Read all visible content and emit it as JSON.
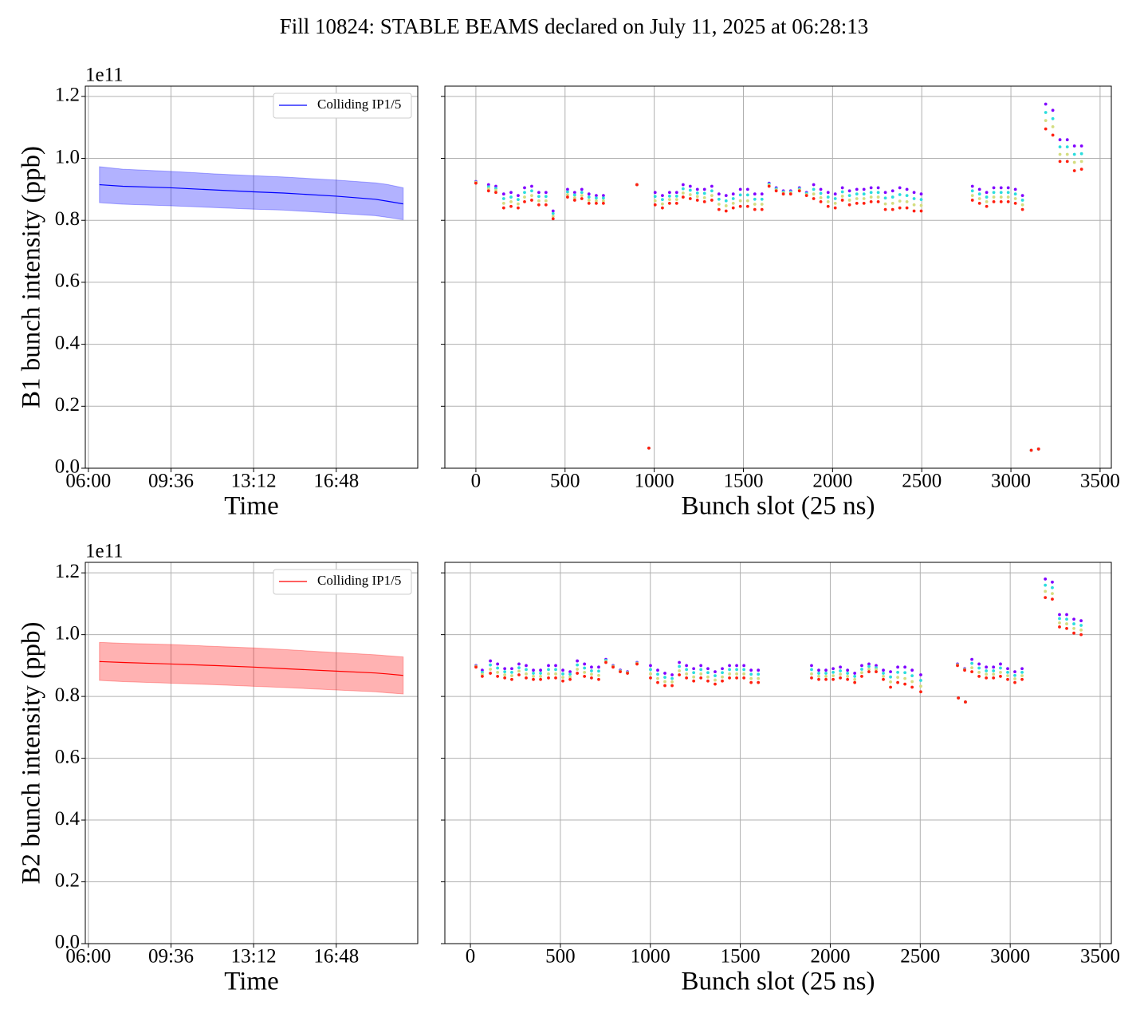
{
  "title": "Fill 10824: STABLE BEAMS declared on July 11, 2025 at 06:28:13",
  "chart_data": [
    {
      "type": "line",
      "ylabel": "B1 bunch intensity (ppb)",
      "xlabel": "Time",
      "y_offset_label": "1e11",
      "x": [
        "06:29",
        "07:30",
        "09:36",
        "11:30",
        "13:12",
        "14:30",
        "16:48",
        "18:30",
        "19:00",
        "19:43"
      ],
      "series": [
        {
          "name": "Colliding IP1/5",
          "color": "#0000ff",
          "values": [
            0.915,
            0.91,
            0.905,
            0.898,
            0.892,
            0.888,
            0.878,
            0.868,
            0.862,
            0.853
          ],
          "lower": [
            0.857,
            0.852,
            0.847,
            0.841,
            0.836,
            0.833,
            0.823,
            0.815,
            0.81,
            0.802
          ],
          "upper": [
            0.973,
            0.965,
            0.958,
            0.95,
            0.944,
            0.94,
            0.93,
            0.921,
            0.916,
            0.905
          ]
        }
      ],
      "xlim": [
        "05:52",
        "20:21"
      ],
      "xticks": [
        "06:00",
        "09:36",
        "13:12",
        "16:48"
      ],
      "ylim": [
        0,
        1.233
      ],
      "yticks": [
        {
          "value": 0,
          "label": "0.0"
        },
        0.2,
        0.4,
        0.6,
        0.8,
        {
          "value": 1,
          "label": "1.0"
        },
        1.2
      ],
      "grid": true,
      "legend": "upper right"
    },
    {
      "type": "scatter",
      "xlabel": "Bunch slot (25 ns)",
      "show_ytick_labels": false,
      "x": [
        0,
        71,
        112,
        156,
        197,
        237,
        273,
        313,
        353,
        393,
        433,
        514,
        554,
        594,
        634,
        675,
        715,
        903,
        970,
        1005,
        1046,
        1086,
        1126,
        1162,
        1202,
        1242,
        1282,
        1323,
        1363,
        1403,
        1443,
        1483,
        1524,
        1564,
        1604,
        1644,
        1684,
        1724,
        1765,
        1814,
        1854,
        1894,
        1934,
        1975,
        2015,
        2055,
        2095,
        2136,
        2176,
        2216,
        2256,
        2296,
        2337,
        2377,
        2417,
        2457,
        2497,
        2784,
        2824,
        2864,
        2904,
        2945,
        2985,
        3025,
        3065,
        3114,
        3155,
        3195,
        3235,
        3275,
        3316,
        3356,
        3396
      ],
      "series": [
        {
          "color": "#8000ff",
          "values": [
            0.925,
            0.915,
            0.91,
            0.885,
            0.89,
            0.88,
            0.905,
            0.91,
            0.89,
            0.89,
            0.83,
            0.9,
            0.89,
            0.9,
            0.885,
            0.88,
            0.88,
            0.915,
            0.065,
            0.89,
            0.88,
            0.89,
            0.89,
            0.915,
            0.91,
            0.9,
            0.9,
            0.91,
            0.885,
            0.88,
            0.885,
            0.9,
            0.9,
            0.885,
            0.885,
            0.92,
            0.905,
            0.895,
            0.895,
            0.905,
            0.89,
            0.915,
            0.9,
            0.89,
            0.885,
            0.905,
            0.895,
            0.9,
            0.9,
            0.905,
            0.905,
            0.89,
            0.895,
            0.905,
            0.9,
            0.89,
            0.885,
            0.91,
            0.9,
            0.89,
            0.905,
            0.905,
            0.905,
            0.9,
            0.88,
            0.058,
            0.062,
            1.175,
            1.155,
            1.06,
            1.06,
            1.04,
            1.04
          ]
        },
        {
          "color": "#2adddd",
          "values": [
            0.923,
            0.908,
            0.903,
            0.87,
            0.875,
            0.867,
            0.89,
            0.895,
            0.877,
            0.877,
            0.822,
            0.892,
            0.882,
            0.89,
            0.875,
            0.872,
            0.872,
            0.915,
            0.065,
            0.877,
            0.867,
            0.878,
            0.878,
            0.902,
            0.897,
            0.888,
            0.887,
            0.895,
            0.868,
            0.863,
            0.87,
            0.882,
            0.882,
            0.868,
            0.868,
            0.917,
            0.902,
            0.892,
            0.892,
            0.902,
            0.887,
            0.9,
            0.887,
            0.875,
            0.87,
            0.892,
            0.88,
            0.885,
            0.885,
            0.89,
            0.89,
            0.872,
            0.875,
            0.883,
            0.88,
            0.87,
            0.867,
            0.895,
            0.885,
            0.875,
            0.89,
            0.89,
            0.89,
            0.885,
            0.865,
            0.058,
            0.062,
            1.148,
            1.128,
            1.037,
            1.037,
            1.013,
            1.015
          ]
        },
        {
          "color": "#d4dd80",
          "values": [
            0.922,
            0.902,
            0.897,
            0.855,
            0.86,
            0.853,
            0.875,
            0.88,
            0.863,
            0.863,
            0.813,
            0.883,
            0.873,
            0.88,
            0.865,
            0.863,
            0.863,
            0.915,
            0.065,
            0.863,
            0.853,
            0.867,
            0.867,
            0.888,
            0.883,
            0.877,
            0.873,
            0.88,
            0.852,
            0.847,
            0.855,
            0.863,
            0.863,
            0.852,
            0.852,
            0.913,
            0.898,
            0.888,
            0.888,
            0.898,
            0.883,
            0.885,
            0.873,
            0.86,
            0.855,
            0.878,
            0.865,
            0.87,
            0.87,
            0.875,
            0.875,
            0.853,
            0.855,
            0.862,
            0.86,
            0.85,
            0.848,
            0.88,
            0.87,
            0.86,
            0.875,
            0.875,
            0.875,
            0.87,
            0.85,
            0.058,
            0.062,
            1.122,
            1.102,
            1.013,
            1.013,
            0.987,
            0.99
          ]
        },
        {
          "color": "#ff2010",
          "values": [
            0.92,
            0.895,
            0.89,
            0.84,
            0.845,
            0.84,
            0.86,
            0.865,
            0.85,
            0.85,
            0.805,
            0.875,
            0.865,
            0.87,
            0.855,
            0.855,
            0.855,
            0.915,
            0.065,
            0.85,
            0.84,
            0.855,
            0.855,
            0.875,
            0.87,
            0.865,
            0.86,
            0.865,
            0.835,
            0.83,
            0.84,
            0.845,
            0.845,
            0.835,
            0.835,
            0.91,
            0.895,
            0.885,
            0.885,
            0.895,
            0.88,
            0.87,
            0.86,
            0.845,
            0.84,
            0.865,
            0.85,
            0.855,
            0.855,
            0.86,
            0.86,
            0.835,
            0.835,
            0.84,
            0.84,
            0.83,
            0.83,
            0.865,
            0.855,
            0.845,
            0.86,
            0.86,
            0.86,
            0.855,
            0.835,
            0.058,
            0.062,
            1.095,
            1.075,
            0.99,
            0.99,
            0.96,
            0.965
          ]
        }
      ],
      "xlim": [
        -174,
        3563
      ],
      "xticks": [
        0,
        500,
        1000,
        1500,
        2000,
        2500,
        3000,
        3500
      ],
      "ylim": [
        0,
        1.233
      ],
      "yticks": [
        0,
        0.2,
        0.4,
        0.6,
        0.8,
        1,
        1.2
      ],
      "grid": true
    },
    {
      "type": "line",
      "ylabel": "B2 bunch intensity (ppb)",
      "xlabel": "Time",
      "y_offset_label": "1e11",
      "x": [
        "06:29",
        "07:30",
        "09:36",
        "11:30",
        "13:12",
        "14:30",
        "16:48",
        "18:30",
        "19:00",
        "19:43"
      ],
      "series": [
        {
          "name": "Colliding IP1/5",
          "color": "#ff0000",
          "values": [
            0.913,
            0.91,
            0.905,
            0.9,
            0.895,
            0.89,
            0.882,
            0.876,
            0.873,
            0.868
          ],
          "lower": [
            0.852,
            0.848,
            0.843,
            0.838,
            0.833,
            0.829,
            0.821,
            0.815,
            0.812,
            0.808
          ],
          "upper": [
            0.975,
            0.972,
            0.968,
            0.962,
            0.957,
            0.952,
            0.942,
            0.935,
            0.932,
            0.928
          ]
        }
      ],
      "xlim": [
        "05:52",
        "20:21"
      ],
      "xticks": [
        "06:00",
        "09:36",
        "13:12",
        "16:48"
      ],
      "ylim": [
        0,
        1.234
      ],
      "yticks": [
        {
          "value": 0,
          "label": "0.0"
        },
        0.2,
        0.4,
        0.6,
        0.8,
        {
          "value": 1,
          "label": "1.0"
        },
        1.2
      ],
      "grid": true,
      "legend": "upper right"
    },
    {
      "type": "scatter",
      "xlabel": "Bunch slot (25 ns)",
      "show_ytick_labels": false,
      "x": [
        31,
        66,
        111,
        151,
        191,
        230,
        270,
        310,
        350,
        390,
        434,
        474,
        514,
        554,
        594,
        634,
        673,
        713,
        753,
        793,
        833,
        873,
        926,
        1001,
        1041,
        1081,
        1121,
        1161,
        1201,
        1241,
        1281,
        1320,
        1360,
        1400,
        1440,
        1480,
        1520,
        1560,
        1600,
        1896,
        1936,
        1976,
        2016,
        2056,
        2096,
        2136,
        2175,
        2215,
        2255,
        2295,
        2335,
        2375,
        2415,
        2455,
        2503,
        2707,
        2712,
        2747,
        2751,
        2787,
        2827,
        2867,
        2907,
        2946,
        2986,
        3026,
        3066,
        3195,
        3234,
        3274,
        3314,
        3354,
        3394
      ],
      "series": [
        {
          "color": "#8000ff",
          "values": [
            0.9,
            0.885,
            0.915,
            0.905,
            0.89,
            0.89,
            0.905,
            0.9,
            0.885,
            0.885,
            0.9,
            0.9,
            0.885,
            0.88,
            0.915,
            0.905,
            0.895,
            0.895,
            0.92,
            0.9,
            0.885,
            0.88,
            0.91,
            0.9,
            0.885,
            0.875,
            0.87,
            0.91,
            0.9,
            0.89,
            0.9,
            0.89,
            0.88,
            0.89,
            0.9,
            0.9,
            0.9,
            0.885,
            0.885,
            0.9,
            0.885,
            0.885,
            0.89,
            0.895,
            0.885,
            0.875,
            0.9,
            0.905,
            0.9,
            0.885,
            0.88,
            0.895,
            0.895,
            0.885,
            0.87,
            0.905,
            0.795,
            0.89,
            0.782,
            0.92,
            0.905,
            0.895,
            0.895,
            0.905,
            0.89,
            0.88,
            0.89,
            1.18,
            1.17,
            1.065,
            1.065,
            1.05,
            1.045
          ]
        },
        {
          "color": "#2adddd",
          "values": [
            0.898,
            0.878,
            0.902,
            0.892,
            0.88,
            0.878,
            0.893,
            0.887,
            0.875,
            0.875,
            0.887,
            0.887,
            0.873,
            0.872,
            0.902,
            0.892,
            0.883,
            0.882,
            0.917,
            0.898,
            0.883,
            0.878,
            0.908,
            0.887,
            0.872,
            0.862,
            0.858,
            0.897,
            0.887,
            0.877,
            0.887,
            0.877,
            0.867,
            0.877,
            0.887,
            0.887,
            0.887,
            0.872,
            0.872,
            0.887,
            0.875,
            0.875,
            0.878,
            0.883,
            0.875,
            0.865,
            0.888,
            0.897,
            0.893,
            0.875,
            0.863,
            0.878,
            0.877,
            0.867,
            0.852,
            0.903,
            0.795,
            0.888,
            0.782,
            0.907,
            0.892,
            0.883,
            0.883,
            0.892,
            0.878,
            0.868,
            0.878,
            1.16,
            1.152,
            1.052,
            1.05,
            1.035,
            1.03
          ]
        },
        {
          "color": "#d4dd80",
          "values": [
            0.897,
            0.872,
            0.888,
            0.878,
            0.87,
            0.867,
            0.882,
            0.873,
            0.865,
            0.865,
            0.873,
            0.873,
            0.862,
            0.863,
            0.888,
            0.878,
            0.872,
            0.868,
            0.913,
            0.897,
            0.882,
            0.877,
            0.907,
            0.873,
            0.858,
            0.848,
            0.847,
            0.883,
            0.873,
            0.863,
            0.873,
            0.863,
            0.853,
            0.863,
            0.873,
            0.873,
            0.873,
            0.858,
            0.858,
            0.873,
            0.865,
            0.865,
            0.867,
            0.872,
            0.865,
            0.855,
            0.877,
            0.888,
            0.887,
            0.865,
            0.847,
            0.862,
            0.858,
            0.848,
            0.833,
            0.902,
            0.795,
            0.887,
            0.782,
            0.893,
            0.878,
            0.872,
            0.872,
            0.878,
            0.867,
            0.857,
            0.867,
            1.14,
            1.133,
            1.038,
            1.035,
            1.02,
            1.015
          ]
        },
        {
          "color": "#ff2010",
          "values": [
            0.895,
            0.865,
            0.875,
            0.865,
            0.86,
            0.855,
            0.87,
            0.86,
            0.855,
            0.855,
            0.86,
            0.86,
            0.85,
            0.855,
            0.875,
            0.865,
            0.86,
            0.855,
            0.91,
            0.895,
            0.88,
            0.875,
            0.905,
            0.86,
            0.845,
            0.835,
            0.835,
            0.87,
            0.86,
            0.85,
            0.86,
            0.85,
            0.84,
            0.85,
            0.86,
            0.86,
            0.86,
            0.845,
            0.845,
            0.86,
            0.855,
            0.855,
            0.855,
            0.86,
            0.855,
            0.845,
            0.865,
            0.88,
            0.88,
            0.855,
            0.83,
            0.845,
            0.84,
            0.83,
            0.815,
            0.9,
            0.795,
            0.885,
            0.782,
            0.88,
            0.865,
            0.86,
            0.86,
            0.865,
            0.855,
            0.845,
            0.855,
            1.12,
            1.115,
            1.025,
            1.02,
            1.005,
            1.0
          ]
        }
      ],
      "xlim": [
        -142,
        3562
      ],
      "xticks": [
        0,
        500,
        1000,
        1500,
        2000,
        2500,
        3000,
        3500
      ],
      "ylim": [
        0,
        1.234
      ],
      "yticks": [
        0,
        0.2,
        0.4,
        0.6,
        0.8,
        1,
        1.2
      ],
      "grid": true
    }
  ]
}
